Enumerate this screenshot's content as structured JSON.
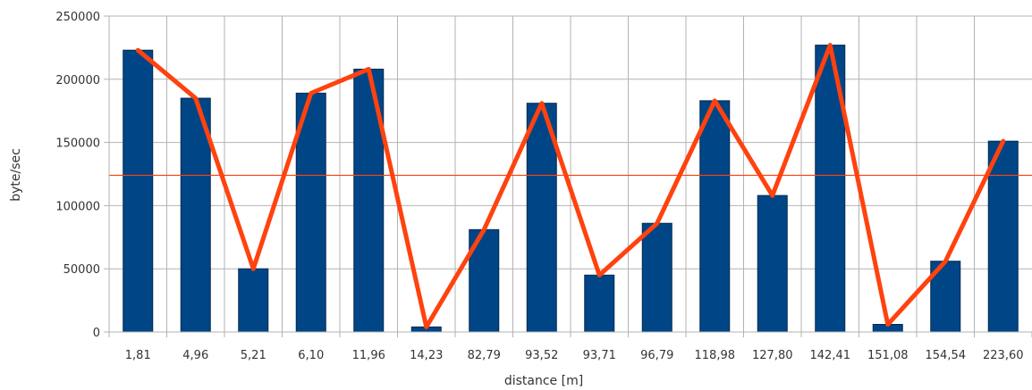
{
  "chart_data": {
    "type": "bar",
    "title": "",
    "xlabel": "distance [m]",
    "ylabel": "byte/sec",
    "ylim": [
      0,
      250000
    ],
    "yticks": [
      0,
      50000,
      100000,
      150000,
      200000,
      250000
    ],
    "ytick_labels": [
      "0",
      "50000",
      "100000",
      "150000",
      "200000",
      "250000"
    ],
    "grid": true,
    "legend": "none",
    "categories": [
      "1,81",
      "4,96",
      "5,21",
      "6,10",
      "11,96",
      "14,23",
      "82,79",
      "93,52",
      "93,71",
      "96,79",
      "118,98",
      "127,80",
      "142,41",
      "151,08",
      "154,54",
      "223,60"
    ],
    "series": [
      {
        "type": "bar",
        "color": "#004586",
        "values": [
          223000,
          185000,
          50000,
          189000,
          208000,
          4000,
          81000,
          181000,
          45000,
          86000,
          183000,
          108000,
          227000,
          6000,
          56000,
          151000
        ]
      },
      {
        "type": "line",
        "color": "#ff420e",
        "values": [
          223000,
          185000,
          50000,
          189000,
          208000,
          4000,
          81000,
          181000,
          45000,
          86000,
          183000,
          108000,
          227000,
          6000,
          56000,
          151000
        ]
      }
    ],
    "reference_line": {
      "value": 124000,
      "color": "#ff420e"
    }
  }
}
